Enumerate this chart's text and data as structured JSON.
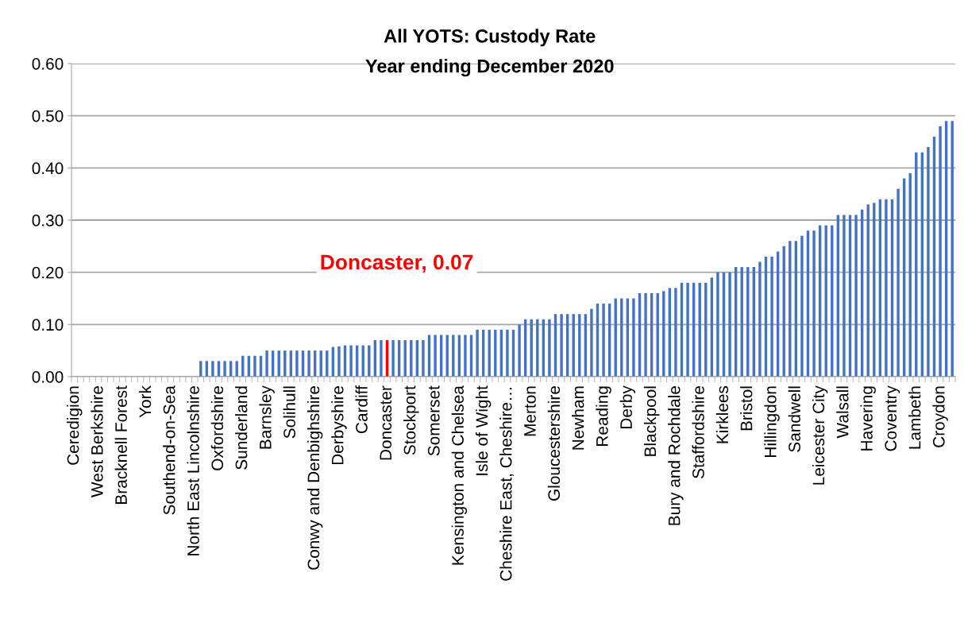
{
  "chart_data": {
    "type": "bar",
    "title": "All YOTS: Custody Rate",
    "subtitle": "Year ending December 2020",
    "categories": [
      "Ceredigion",
      null,
      null,
      null,
      "West Berkshire",
      null,
      null,
      null,
      "Bracknell Forest",
      null,
      null,
      null,
      "York",
      null,
      null,
      null,
      "Southend-on-Sea",
      null,
      null,
      null,
      "North East Lincolnshire",
      null,
      null,
      null,
      "Oxfordshire",
      null,
      null,
      null,
      "Sunderland",
      null,
      null,
      null,
      "Barnsley",
      null,
      null,
      null,
      "Solihull",
      null,
      null,
      null,
      "Conwy and Denbighshire",
      null,
      null,
      null,
      "Derbyshire",
      null,
      null,
      null,
      "Cardiff",
      null,
      null,
      null,
      "Doncaster",
      null,
      null,
      null,
      "Stockport",
      null,
      null,
      null,
      "Somerset",
      null,
      null,
      null,
      "Kensington and Chelsea",
      null,
      null,
      null,
      "Isle of Wight",
      null,
      null,
      null,
      "Cheshire East, Cheshire…",
      null,
      null,
      null,
      "Merton",
      null,
      null,
      null,
      "Gloucestershire",
      null,
      null,
      null,
      "Newham",
      null,
      null,
      null,
      "Reading",
      null,
      null,
      null,
      "Derby",
      null,
      null,
      null,
      "Blackpool",
      null,
      null,
      null,
      "Bury and Rochdale",
      null,
      null,
      null,
      "Staffordshire",
      null,
      null,
      null,
      "Kirklees",
      null,
      null,
      null,
      "Bristol",
      null,
      null,
      null,
      "Hillingdon",
      null,
      null,
      null,
      "Sandwell",
      null,
      null,
      null,
      "Leicester City",
      null,
      null,
      null,
      "Walsall",
      null,
      null,
      null,
      "Havering",
      null,
      null,
      null,
      "Coventry",
      null,
      null,
      null,
      "Lambeth",
      null,
      null,
      null,
      "Croydon",
      null,
      null
    ],
    "values": [
      0,
      0,
      0,
      0,
      0,
      0,
      0,
      0,
      0,
      0,
      0,
      0,
      0,
      0,
      0,
      0,
      0,
      0,
      0,
      0,
      0,
      0.03,
      0.03,
      0.03,
      0.03,
      0.03,
      0.03,
      0.03,
      0.04,
      0.04,
      0.04,
      0.04,
      0.05,
      0.05,
      0.05,
      0.05,
      0.05,
      0.05,
      0.05,
      0.05,
      0.05,
      0.05,
      0.05,
      0.057,
      0.058,
      0.06,
      0.06,
      0.06,
      0.06,
      0.06,
      0.07,
      0.07,
      0.07,
      0.07,
      0.07,
      0.07,
      0.07,
      0.07,
      0.07,
      0.08,
      0.08,
      0.08,
      0.08,
      0.08,
      0.08,
      0.08,
      0.08,
      0.09,
      0.09,
      0.09,
      0.09,
      0.09,
      0.09,
      0.09,
      0.1,
      0.11,
      0.11,
      0.11,
      0.11,
      0.11,
      0.12,
      0.12,
      0.12,
      0.12,
      0.12,
      0.12,
      0.13,
      0.14,
      0.14,
      0.14,
      0.15,
      0.15,
      0.15,
      0.15,
      0.16,
      0.16,
      0.16,
      0.16,
      0.164,
      0.17,
      0.17,
      0.18,
      0.18,
      0.18,
      0.18,
      0.18,
      0.19,
      0.2,
      0.2,
      0.2,
      0.21,
      0.21,
      0.21,
      0.21,
      0.22,
      0.23,
      0.23,
      0.24,
      0.25,
      0.26,
      0.26,
      0.27,
      0.28,
      0.28,
      0.29,
      0.29,
      0.29,
      0.31,
      0.31,
      0.31,
      0.31,
      0.32,
      0.33,
      0.333,
      0.34,
      0.34,
      0.34,
      0.36,
      0.38,
      0.39,
      0.43,
      0.43,
      0.44,
      0.46,
      0.48,
      0.49,
      0.49
    ],
    "colors": [
      "#4472c4",
      "#4472c4",
      "#4472c4",
      "#4472c4",
      "#4472c4",
      "#4472c4",
      "#4472c4",
      "#4472c4",
      "#4472c4",
      "#4472c4",
      "#4472c4",
      "#4472c4",
      "#4472c4",
      "#4472c4",
      "#4472c4",
      "#4472c4",
      "#4472c4",
      "#4472c4",
      "#4472c4",
      "#4472c4",
      "#4472c4",
      "#4472c4",
      "#4472c4",
      "#4472c4",
      "#4472c4",
      "#4472c4",
      "#4472c4",
      "#4472c4",
      "#4472c4",
      "#4472c4",
      "#4472c4",
      "#4472c4",
      "#4472c4",
      "#4472c4",
      "#4472c4",
      "#4472c4",
      "#4472c4",
      "#4472c4",
      "#4472c4",
      "#4472c4",
      "#4472c4",
      "#4472c4",
      "#4472c4",
      "#4472c4",
      "#4472c4",
      "#4472c4",
      "#4472c4",
      "#4472c4",
      "#4472c4",
      "#4472c4",
      "#4472c4",
      "#4472c4",
      "#ff0000",
      "#4472c4",
      "#4472c4",
      "#4472c4",
      "#4472c4",
      "#4472c4",
      "#4472c4",
      "#4472c4",
      "#4472c4",
      "#4472c4",
      "#4472c4",
      "#4472c4",
      "#4472c4",
      "#4472c4",
      "#4472c4",
      "#4472c4",
      "#4472c4",
      "#4472c4",
      "#4472c4",
      "#4472c4",
      "#4472c4",
      "#4472c4",
      "#4472c4",
      "#4472c4",
      "#4472c4",
      "#4472c4",
      "#4472c4",
      "#4472c4",
      "#4472c4",
      "#4472c4",
      "#4472c4",
      "#4472c4",
      "#4472c4",
      "#4472c4",
      "#4472c4",
      "#4472c4",
      "#4472c4",
      "#4472c4",
      "#4472c4",
      "#4472c4",
      "#4472c4",
      "#4472c4",
      "#4472c4",
      "#4472c4",
      "#4472c4",
      "#4472c4",
      "#4472c4",
      "#4472c4",
      "#4472c4",
      "#4472c4",
      "#4472c4",
      "#4472c4",
      "#4472c4",
      "#4472c4",
      "#4472c4",
      "#4472c4",
      "#4472c4",
      "#4472c4",
      "#4472c4",
      "#4472c4",
      "#4472c4",
      "#4472c4",
      "#4472c4",
      "#4472c4",
      "#4472c4",
      "#4472c4",
      "#4472c4",
      "#4472c4",
      "#4472c4",
      "#4472c4",
      "#4472c4",
      "#4472c4",
      "#4472c4",
      "#4472c4",
      "#4472c4",
      "#4472c4",
      "#4472c4",
      "#4472c4",
      "#4472c4",
      "#4472c4",
      "#4472c4",
      "#4472c4",
      "#4472c4",
      "#4472c4",
      "#4472c4",
      "#4472c4",
      "#4472c4",
      "#4472c4",
      "#4472c4",
      "#4472c4",
      "#4472c4",
      "#4472c4",
      "#4472c4",
      "#4472c4",
      "#4472c4"
    ],
    "ylim": [
      0,
      0.6
    ],
    "yticks": [
      {
        "value": 0,
        "label": "0.00"
      },
      {
        "value": 0.1,
        "label": "0.10"
      },
      {
        "value": 0.2,
        "label": "0.20"
      },
      {
        "value": 0.3,
        "label": "0.30"
      },
      {
        "value": 0.4,
        "label": "0.40"
      },
      {
        "value": 0.5,
        "label": "0.50"
      },
      {
        "value": 0.6,
        "label": "0.60"
      }
    ],
    "grid": "y",
    "annotations": [
      "Doncaster, 0.07"
    ]
  }
}
